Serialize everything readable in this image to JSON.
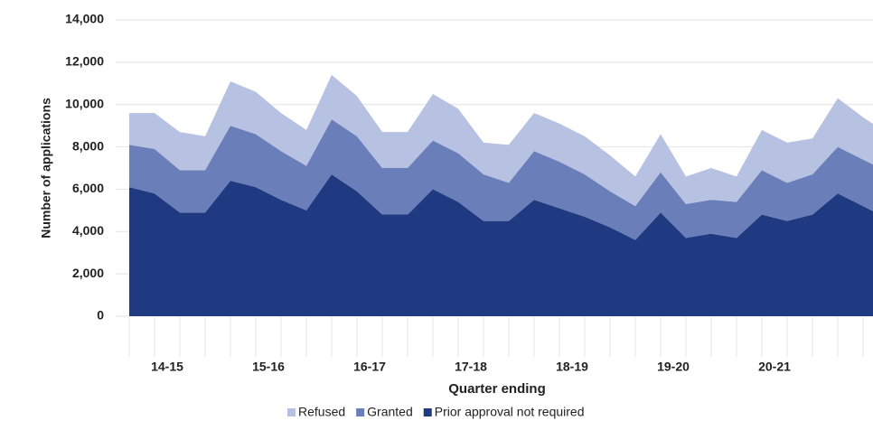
{
  "chart_data": {
    "type": "stacked-area",
    "x_label": "Quarter ending",
    "y_label": "Number of applications",
    "categories": [
      null,
      "14-15",
      null,
      null,
      null,
      "15-16",
      null,
      null,
      null,
      "16-17",
      null,
      null,
      null,
      "17-18",
      null,
      null,
      null,
      "18-19",
      null,
      null,
      null,
      "19-20",
      null,
      null,
      null,
      "20-21",
      null,
      null,
      null,
      "..",
      null
    ],
    "series": [
      {
        "name": "Refused",
        "color": "#b7c1e2",
        "values": [
          1500,
          1700,
          1800,
          1600,
          2100,
          2000,
          1800,
          1700,
          2100,
          1900,
          1700,
          1700,
          2200,
          2100,
          1500,
          1800,
          1800,
          1800,
          1800,
          1700,
          1400,
          1800,
          1300,
          1500,
          1200,
          1900,
          1900,
          1700,
          2300,
          2000,
          1800
        ]
      },
      {
        "name": "Granted",
        "color": "#6a7eb9",
        "values": [
          2000,
          2100,
          2000,
          2000,
          2600,
          2500,
          2300,
          2100,
          2600,
          2600,
          2200,
          2200,
          2300,
          2300,
          2200,
          1800,
          2300,
          2200,
          2000,
          1700,
          1600,
          1900,
          1600,
          1600,
          1700,
          2100,
          1800,
          1900,
          2200,
          2200,
          2200
        ]
      },
      {
        "name": "Prior approval not required",
        "color": "#1f3a80",
        "values": [
          6100,
          5800,
          4900,
          4900,
          6400,
          6100,
          5500,
          5000,
          6700,
          5900,
          4800,
          4800,
          6000,
          5400,
          4500,
          4500,
          5500,
          5100,
          4700,
          4200,
          3600,
          4900,
          3700,
          3900,
          3700,
          4800,
          4500,
          4800,
          5800,
          5200,
          4600
        ]
      }
    ],
    "ylim": [
      0,
      14000
    ],
    "yticks": [
      0,
      {
        "value": 2000,
        "label": "2,000"
      },
      {
        "value": 4000,
        "label": "4,000"
      },
      {
        "value": 6000,
        "label": "6,000"
      },
      {
        "value": 8000,
        "label": "8,000"
      },
      {
        "value": 10000,
        "label": "10,000"
      },
      {
        "value": 12000,
        "label": "12,000"
      },
      {
        "value": 14000,
        "label": "14,000"
      }
    ],
    "grid": true,
    "legend": "bottom"
  }
}
